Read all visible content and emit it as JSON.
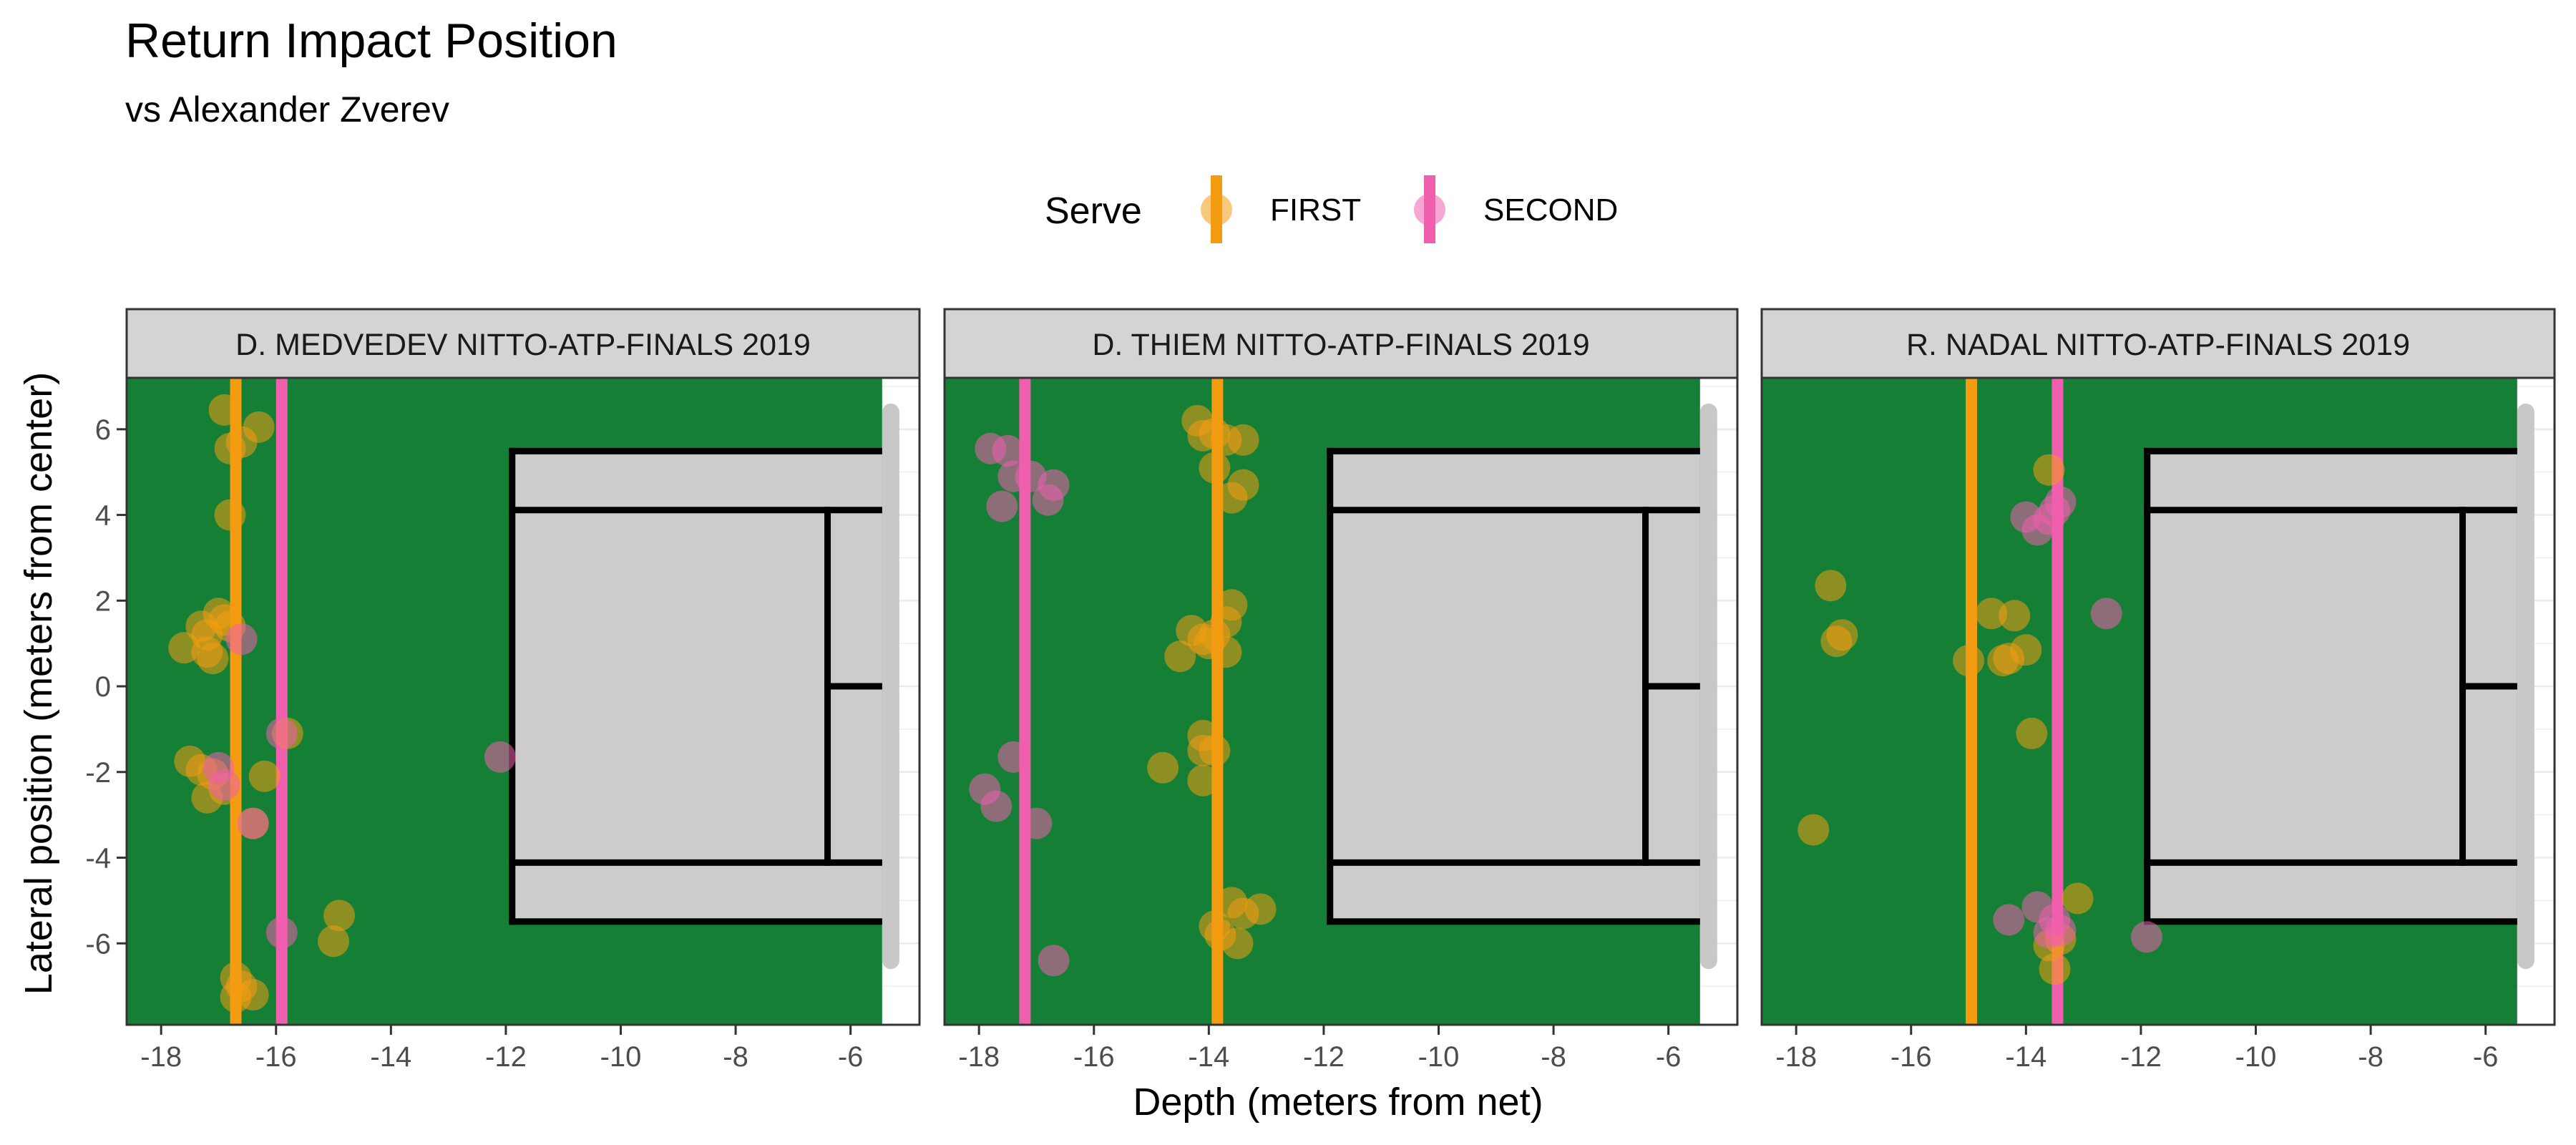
{
  "chart_data": {
    "type": "scatter",
    "title": "Return Impact Position",
    "subtitle": "vs Alexander Zverev",
    "xlabel": "Depth (meters from net)",
    "ylabel": "Lateral position (meters from center)",
    "xlim": [
      -18.6,
      -4.8
    ],
    "ylim": [
      -7.9,
      7.2
    ],
    "x_ticks": [
      -18,
      -16,
      -14,
      -12,
      -10,
      -8,
      -6
    ],
    "y_ticks": [
      -6,
      -4,
      -2,
      0,
      2,
      4,
      6
    ],
    "legend": {
      "title": "Serve",
      "position": "top",
      "entries": [
        {
          "label": "FIRST",
          "color": "#f39c12"
        },
        {
          "label": "SECOND",
          "color": "#f05fae"
        }
      ]
    },
    "colors": {
      "court_green": "#147f35",
      "court_grey": "#cccccc",
      "strip_fill": "#d4d4d4",
      "first": "#f39c12",
      "second": "#f05fae"
    },
    "panels": [
      {
        "label": "D. MEDVEDEV NITTO-ATP-FINALS 2019",
        "avg_first": -16.7,
        "avg_second": -15.9,
        "first": [
          [
            -16.9,
            6.45
          ],
          [
            -16.3,
            6.05
          ],
          [
            -16.6,
            5.7
          ],
          [
            -16.8,
            5.55
          ],
          [
            -16.8,
            4.0
          ],
          [
            -17.3,
            1.4
          ],
          [
            -17.0,
            1.7
          ],
          [
            -17.2,
            1.2
          ],
          [
            -16.8,
            1.4
          ],
          [
            -16.9,
            1.55
          ],
          [
            -17.6,
            0.9
          ],
          [
            -17.2,
            0.8
          ],
          [
            -17.1,
            0.65
          ],
          [
            -17.5,
            -1.75
          ],
          [
            -17.3,
            -1.95
          ],
          [
            -17.1,
            -2.05
          ],
          [
            -17.2,
            -2.6
          ],
          [
            -16.2,
            -2.1
          ],
          [
            -16.4,
            -3.2
          ],
          [
            -15.8,
            -1.1
          ],
          [
            -16.7,
            -6.8
          ],
          [
            -16.6,
            -7.0
          ],
          [
            -16.7,
            -7.25
          ],
          [
            -16.4,
            -7.2
          ],
          [
            -15.0,
            -5.95
          ],
          [
            -14.9,
            -5.35
          ],
          [
            -16.9,
            -2.4
          ]
        ],
        "second": [
          [
            -16.6,
            1.1
          ],
          [
            -16.9,
            -2.3
          ],
          [
            -16.4,
            -3.2
          ],
          [
            -15.9,
            -1.1
          ],
          [
            -15.9,
            -5.75
          ],
          [
            -12.1,
            -1.65
          ],
          [
            -17.0,
            -1.9
          ]
        ]
      },
      {
        "label": "D. THIEM NITTO-ATP-FINALS 2019",
        "avg_first": -13.85,
        "avg_second": -17.2,
        "first": [
          [
            -14.2,
            6.2
          ],
          [
            -14.1,
            5.85
          ],
          [
            -13.9,
            5.9
          ],
          [
            -13.7,
            5.75
          ],
          [
            -13.4,
            5.75
          ],
          [
            -13.9,
            5.1
          ],
          [
            -13.6,
            4.4
          ],
          [
            -13.4,
            4.7
          ],
          [
            -13.6,
            1.9
          ],
          [
            -13.7,
            1.5
          ],
          [
            -14.3,
            1.3
          ],
          [
            -14.1,
            1.1
          ],
          [
            -13.9,
            1.2
          ],
          [
            -14.0,
            1.0
          ],
          [
            -13.7,
            0.8
          ],
          [
            -14.5,
            0.7
          ],
          [
            -14.1,
            -1.15
          ],
          [
            -14.1,
            -1.5
          ],
          [
            -13.9,
            -1.5
          ],
          [
            -14.8,
            -1.9
          ],
          [
            -14.1,
            -2.2
          ],
          [
            -13.6,
            -5.05
          ],
          [
            -13.4,
            -5.3
          ],
          [
            -13.1,
            -5.2
          ],
          [
            -13.8,
            -5.8
          ],
          [
            -13.5,
            -6.0
          ],
          [
            -13.9,
            -5.6
          ]
        ],
        "second": [
          [
            -17.8,
            5.55
          ],
          [
            -17.5,
            5.5
          ],
          [
            -17.4,
            4.9
          ],
          [
            -17.1,
            4.9
          ],
          [
            -16.7,
            4.7
          ],
          [
            -17.6,
            4.2
          ],
          [
            -16.8,
            4.35
          ],
          [
            -17.4,
            -1.65
          ],
          [
            -17.9,
            -2.4
          ],
          [
            -17.7,
            -2.8
          ],
          [
            -17.0,
            -3.2
          ],
          [
            -16.7,
            -6.4
          ]
        ]
      },
      {
        "label": "R. NADAL NITTO-ATP-FINALS 2019",
        "avg_first": -14.95,
        "avg_second": -13.45,
        "first": [
          [
            -17.4,
            2.35
          ],
          [
            -17.2,
            1.2
          ],
          [
            -17.3,
            1.05
          ],
          [
            -15.0,
            0.6
          ],
          [
            -14.6,
            1.7
          ],
          [
            -14.2,
            1.65
          ],
          [
            -14.4,
            0.6
          ],
          [
            -14.3,
            0.65
          ],
          [
            -14.0,
            0.85
          ],
          [
            -13.6,
            5.05
          ],
          [
            -13.9,
            -1.1
          ],
          [
            -17.7,
            -3.35
          ],
          [
            -13.1,
            -4.95
          ],
          [
            -13.6,
            -6.05
          ],
          [
            -13.5,
            -6.6
          ],
          [
            -13.4,
            -5.9
          ]
        ],
        "second": [
          [
            -14.0,
            3.95
          ],
          [
            -13.8,
            3.65
          ],
          [
            -13.6,
            3.9
          ],
          [
            -13.4,
            4.3
          ],
          [
            -13.5,
            4.1
          ],
          [
            -12.6,
            1.7
          ],
          [
            -14.3,
            -5.45
          ],
          [
            -13.8,
            -5.15
          ],
          [
            -13.5,
            -5.45
          ],
          [
            -13.4,
            -5.7
          ],
          [
            -11.9,
            -5.85
          ],
          [
            -13.6,
            -5.75
          ]
        ]
      }
    ]
  }
}
